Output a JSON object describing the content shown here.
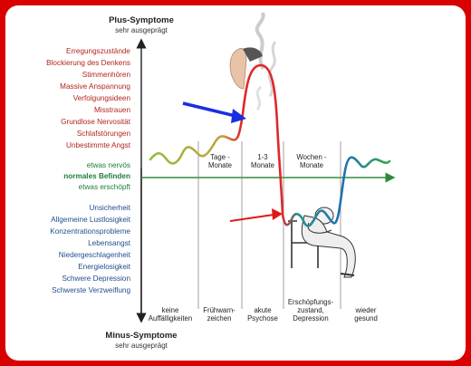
{
  "top_axis": {
    "title": "Plus-Symptome",
    "subtitle": "sehr ausgeprägt"
  },
  "bottom_axis": {
    "title": "Minus-Symptome",
    "subtitle": "sehr ausgeprägt"
  },
  "plus_symptoms": [
    "Erregungszustände",
    "Blockierung des Denkens",
    "Stimmenhören",
    "Massive Anspannung",
    "Verfolgungsideen",
    "Misstrauen",
    "Grundlose Nervosität",
    "Schlafstörungen",
    "Unbestimmte Angst"
  ],
  "middle": {
    "nervous": "etwas nervös",
    "normal": "normales Befinden",
    "exhausted": "etwas erschöpft"
  },
  "minus_symptoms": [
    "Unsicherheit",
    "Allgemeine Lustlosigkeit",
    "Konzentrationsprobleme",
    "Lebensangst",
    "Niedergeschlagenheit",
    "Energielosigkeit",
    "Schwere Depression",
    "Schwerste Verzweiflung"
  ],
  "durations": {
    "days": [
      "Tage -",
      "Monate"
    ],
    "months13": [
      "1-3",
      "Monate"
    ],
    "weeks": [
      "Wochen -",
      "Monate"
    ]
  },
  "stages": {
    "none": [
      "keine",
      "Auffälligkeiten"
    ],
    "early": [
      "Frühwarn-",
      "zeichen"
    ],
    "acute": [
      "akute",
      "Psychose"
    ],
    "exhaustion": [
      "Erschöpfungs-",
      "zustand,",
      "Depression"
    ],
    "healthy": [
      "wieder",
      "gesund"
    ]
  },
  "colors": {
    "green": "#6aa84f",
    "red": "#e03030",
    "blue": "#1f6fb5",
    "arrow_blue": "#1a2ee0",
    "arrow_red": "#e01818"
  },
  "icons": [
    "face-profile-icon",
    "smoke-icon",
    "sitting-person-icon"
  ]
}
